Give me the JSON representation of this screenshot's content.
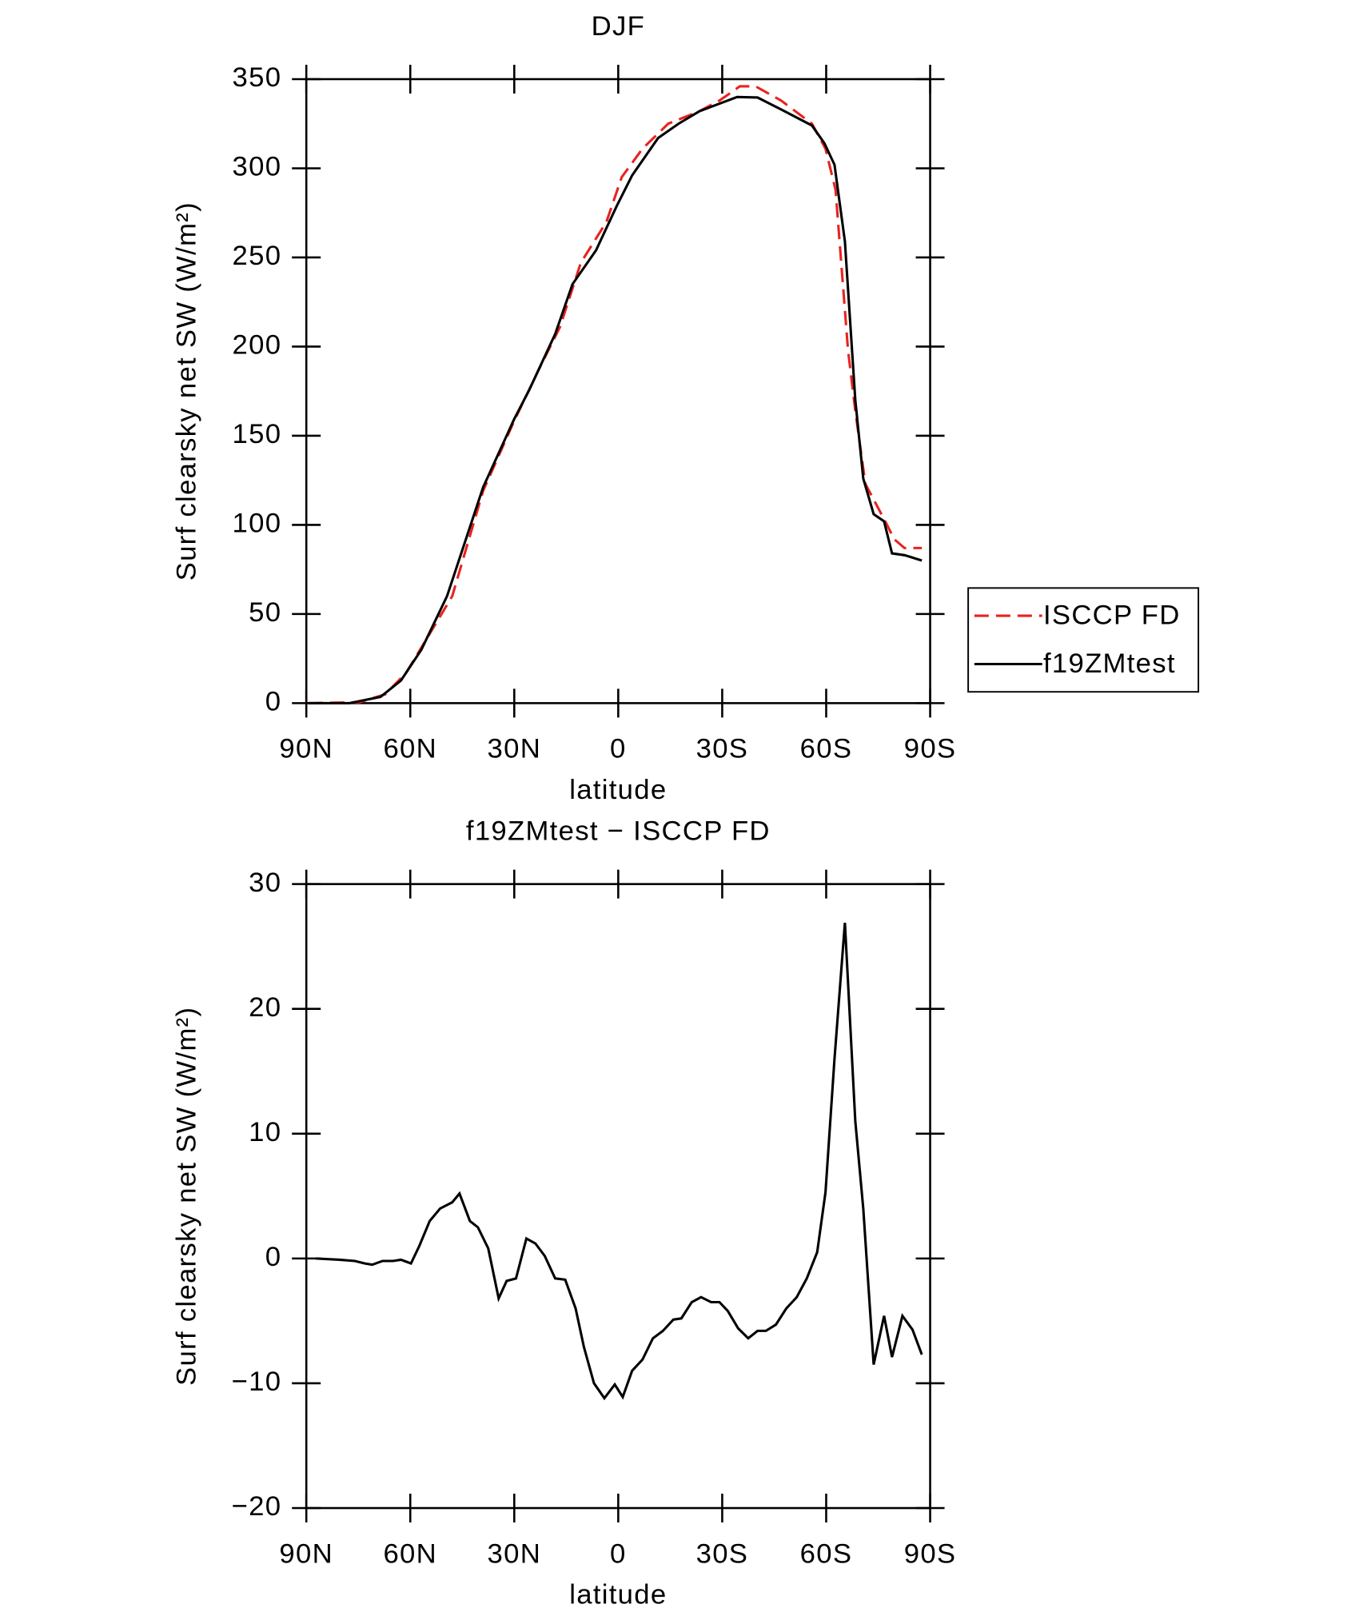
{
  "chart_data": [
    {
      "type": "line",
      "title": "DJF",
      "xlabel": "latitude",
      "ylabel": "Surf clearsky net SW (W/m²)",
      "xlim": [
        90,
        -90
      ],
      "xticks": [
        {
          "value": 90,
          "label": "90N"
        },
        {
          "value": 60,
          "label": "60N"
        },
        {
          "value": 30,
          "label": "30N"
        },
        0,
        {
          "value": -30,
          "label": "30S"
        },
        {
          "value": -60,
          "label": "60S"
        },
        {
          "value": -90,
          "label": "90S"
        }
      ],
      "ylim": [
        0,
        350
      ],
      "yticks": [
        0,
        50,
        100,
        150,
        200,
        250,
        300,
        350
      ],
      "legend": "right",
      "series": [
        {
          "name": "ISCCP FD",
          "color": "#e8231f",
          "dash": true,
          "x": [
            89.4,
            74.6,
            67.2,
            61.2,
            55.3,
            47.9,
            39,
            30.1,
            22.7,
            16.8,
            10.8,
            3.4,
            -1,
            -7,
            -14.4,
            -23.4,
            -29.2,
            -35.1,
            -39.6,
            -47,
            -55.9,
            -59.8,
            -62.7,
            -66.3,
            -68.4,
            -71.3,
            -74.3,
            -77.3,
            -79.6,
            -82.6,
            -87.6
          ],
          "values": [
            0,
            0.5,
            5,
            17,
            36,
            60,
            119,
            158,
            188,
            211,
            247,
            270,
            295,
            311,
            325,
            332,
            338,
            346,
            346,
            338,
            325,
            311,
            288,
            198,
            164,
            123,
            112,
            101,
            92,
            87,
            87
          ]
        },
        {
          "name": "f19ZMtest",
          "color": "#000000",
          "dash": false,
          "x": [
            89.4,
            77.5,
            68.6,
            62.7,
            56.8,
            49.4,
            39,
            30.1,
            25.6,
            18.2,
            13.2,
            6.4,
            0.4,
            -4,
            -11.5,
            -17.4,
            -23.4,
            -34.3,
            -40.2,
            -47,
            -55.9,
            -59.5,
            -62.4,
            -65.4,
            -68.4,
            -70.7,
            -73.7,
            -76.7,
            -79,
            -82.6,
            -87.6
          ],
          "values": [
            0,
            0,
            3.5,
            12.7,
            30,
            60,
            121,
            159,
            176,
            207,
            235,
            254,
            279,
            296,
            317,
            325,
            332,
            340,
            339.7,
            333,
            324,
            314,
            302,
            259,
            170,
            126,
            106,
            102,
            84,
            83,
            80
          ]
        }
      ]
    },
    {
      "type": "line",
      "title": "f19ZMtest − ISCCP FD",
      "xlabel": "latitude",
      "ylabel": "Surf clearsky net SW (W/m²)",
      "xlim": [
        90,
        -90
      ],
      "xticks": [
        {
          "value": 90,
          "label": "90N"
        },
        {
          "value": 60,
          "label": "60N"
        },
        {
          "value": 30,
          "label": "30N"
        },
        0,
        {
          "value": -30,
          "label": "30S"
        },
        {
          "value": -60,
          "label": "60S"
        },
        {
          "value": -90,
          "label": "90S"
        }
      ],
      "ylim": [
        -20,
        30
      ],
      "yticks": [
        {
          "value": -20,
          "label": "−20"
        },
        {
          "value": -10,
          "label": "−10"
        },
        0,
        10,
        20,
        30
      ],
      "series": [
        {
          "color": "#000000",
          "dash": false,
          "x": [
            87.3,
            80.5,
            76,
            73.1,
            71,
            68,
            65,
            62.7,
            59.8,
            57.4,
            54.4,
            51.4,
            47.9,
            45.8,
            42.8,
            40.5,
            37.5,
            34.5,
            32.2,
            29.5,
            26.5,
            23.9,
            21.2,
            18.2,
            15.3,
            12.3,
            9.9,
            7,
            4,
            1,
            -1.3,
            -4,
            -7,
            -10,
            -12.9,
            -15.9,
            -18.2,
            -21.2,
            -23.9,
            -26.8,
            -29.2,
            -31.6,
            -34.6,
            -37.5,
            -40.2,
            -42.6,
            -45.5,
            -48.5,
            -51.5,
            -54.4,
            -57.4,
            -59.8,
            -62.4,
            -65.4,
            -68.4,
            -70.7,
            -73.7,
            -76.7,
            -79,
            -82,
            -84.9,
            -87.6
          ],
          "values": [
            0,
            -0.1,
            -0.2,
            -0.4,
            -0.5,
            -0.2,
            -0.2,
            -0.1,
            -0.4,
            1.0,
            3.0,
            4.0,
            4.5,
            5.2,
            3.0,
            2.5,
            0.8,
            -3.2,
            -1.8,
            -1.6,
            1.6,
            1.2,
            0.2,
            -1.6,
            -1.7,
            -4.0,
            -7.1,
            -10,
            -11.2,
            -10.1,
            -11.1,
            -9,
            -8.1,
            -6.4,
            -5.8,
            -4.9,
            -4.8,
            -3.5,
            -3.1,
            -3.5,
            -3.5,
            -4.2,
            -5.6,
            -6.4,
            -5.8,
            -5.8,
            -5.3,
            -4.0,
            -3.1,
            -1.6,
            0.5,
            5.3,
            16.0,
            26.9,
            11.0,
            4.0,
            -8.5,
            -4.6,
            -7.9,
            -4.6,
            -5.7,
            -7.7
          ]
        }
      ]
    }
  ]
}
